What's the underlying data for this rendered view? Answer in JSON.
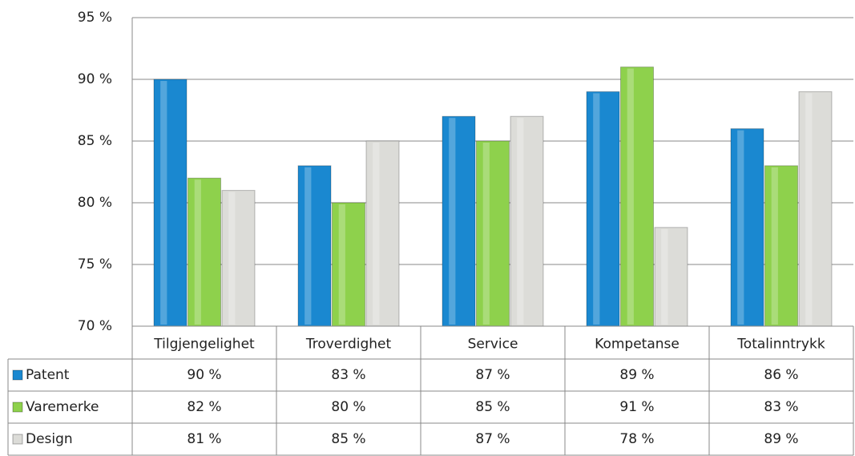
{
  "chart_data": {
    "type": "bar",
    "categories": [
      "Tilgjengelighet",
      "Troverdighet",
      "Service",
      "Kompetanse",
      "Totalinntrykk"
    ],
    "series": [
      {
        "name": "Patent",
        "color": "#1a88d0",
        "values": [
          90,
          83,
          87,
          89,
          86
        ],
        "value_labels": [
          "90 %",
          "83 %",
          "87 %",
          "89 %",
          "86 %"
        ]
      },
      {
        "name": "Varemerke",
        "color": "#8ed14c",
        "values": [
          82,
          80,
          85,
          91,
          83
        ],
        "value_labels": [
          "82 %",
          "80 %",
          "85 %",
          "91 %",
          "83 %"
        ]
      },
      {
        "name": "Design",
        "color": "#dcdcd8",
        "values": [
          81,
          85,
          87,
          78,
          89
        ],
        "value_labels": [
          "81 %",
          "85 %",
          "87 %",
          "78 %",
          "89 %"
        ]
      }
    ],
    "ylim": [
      70,
      95
    ],
    "yticks": [
      {
        "value": 70,
        "label": "70 %"
      },
      {
        "value": 75,
        "label": "75 %"
      },
      {
        "value": 80,
        "label": "80 %"
      },
      {
        "value": 85,
        "label": "85 %"
      },
      {
        "value": 90,
        "label": "90 %"
      },
      {
        "value": 95,
        "label": "95 %"
      }
    ],
    "grid": true
  }
}
